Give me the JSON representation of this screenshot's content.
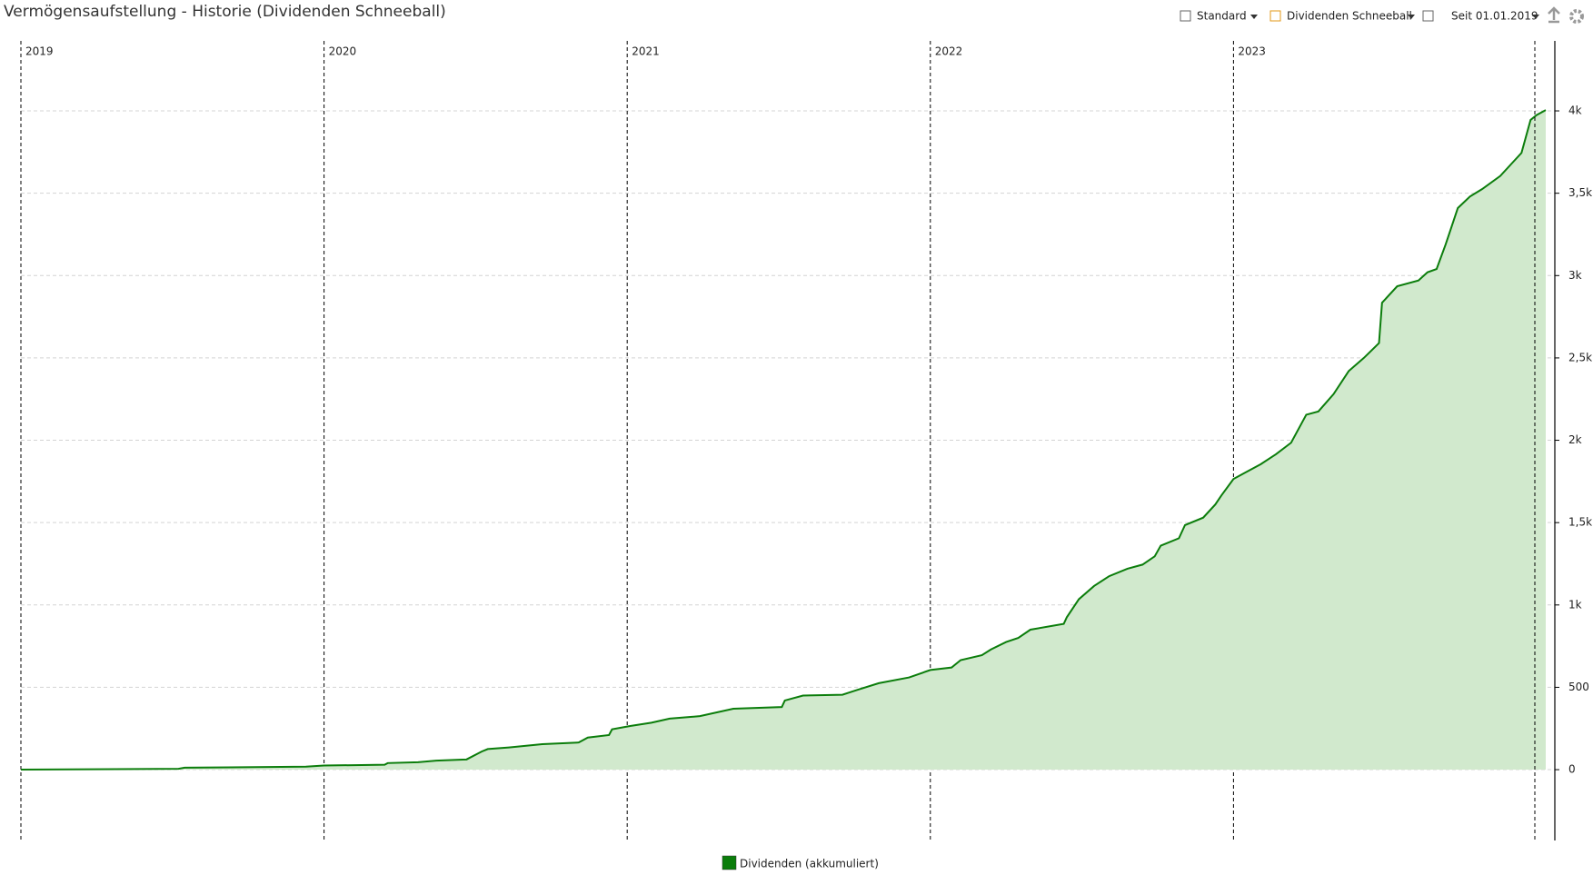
{
  "title": "Vermögensaufstellung - Historie (Dividenden Schneeball)",
  "toolbar": {
    "view": "Standard",
    "preset": "Dividenden Schneeball",
    "range": "Seit 01.01.2019"
  },
  "chart_data": {
    "type": "area",
    "x": [
      2019.0,
      2019.52,
      2019.54,
      2019.94,
      2020.0,
      2020.2,
      2020.21,
      2020.31,
      2020.37,
      2020.47,
      2020.52,
      2020.54,
      2020.61,
      2020.72,
      2020.84,
      2020.87,
      2020.94,
      2020.95,
      2021.01,
      2021.08,
      2021.14,
      2021.24,
      2021.35,
      2021.51,
      2021.52,
      2021.58,
      2021.71,
      2021.76,
      2021.83,
      2021.93,
      2022.0,
      2022.07,
      2022.1,
      2022.17,
      2022.2,
      2022.25,
      2022.29,
      2022.33,
      2022.44,
      2022.45,
      2022.49,
      2022.54,
      2022.59,
      2022.65,
      2022.7,
      2022.74,
      2022.76,
      2022.82,
      2022.84,
      2022.9,
      2022.94,
      2022.96,
      2023.0,
      2023.04,
      2023.09,
      2023.14,
      2023.19,
      2023.24,
      2023.28,
      2023.33,
      2023.38,
      2023.43,
      2023.48,
      2023.49,
      2023.54,
      2023.61,
      2023.64,
      2023.67,
      2023.7,
      2023.74,
      2023.78,
      2023.82,
      2023.88,
      2023.92,
      2023.95,
      2023.98,
      2024.0,
      2024.03
    ],
    "series": [
      {
        "name": "Dividenden (akkumuliert)",
        "color": "#0b7d0b",
        "fill": "#d1e9cd",
        "values": [
          0,
          5,
          12,
          18,
          25,
          30,
          40,
          45,
          55,
          62,
          110,
          125,
          135,
          155,
          165,
          195,
          210,
          245,
          265,
          285,
          310,
          325,
          370,
          380,
          420,
          450,
          455,
          485,
          525,
          560,
          605,
          620,
          665,
          695,
          730,
          775,
          800,
          850,
          885,
          925,
          1035,
          1115,
          1175,
          1220,
          1245,
          1295,
          1360,
          1405,
          1485,
          1530,
          1610,
          1665,
          1765,
          1805,
          1855,
          1915,
          1985,
          2155,
          2175,
          2280,
          2420,
          2500,
          2590,
          2835,
          2935,
          2970,
          3020,
          3040,
          3190,
          3410,
          3480,
          3525,
          3605,
          3685,
          3745,
          3945,
          3975,
          4005
        ]
      }
    ],
    "xlim": [
      2019,
      2024.06
    ],
    "xticks": [
      2019,
      2020,
      2021,
      2022,
      2023
    ],
    "ylim": [
      -430,
      4425
    ],
    "yticks": [
      0,
      500,
      {
        "value": 1000,
        "label": "1k"
      },
      {
        "value": 1500,
        "label": "1,5k"
      },
      {
        "value": 2000,
        "label": "2k"
      },
      {
        "value": 2500,
        "label": "2,5k"
      },
      {
        "value": 3000,
        "label": "3k"
      },
      {
        "value": 3500,
        "label": "3,5k"
      },
      {
        "value": 4000,
        "label": "4k"
      }
    ],
    "grid": true
  }
}
